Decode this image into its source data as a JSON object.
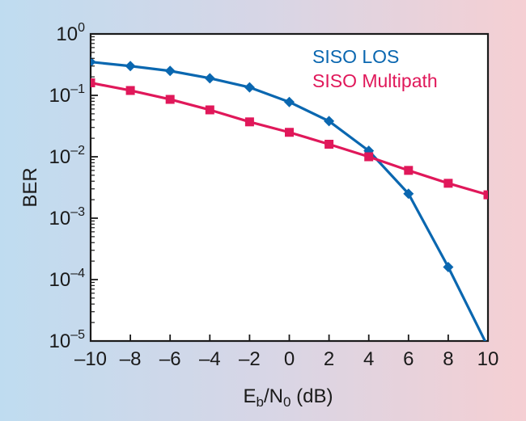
{
  "chart_data": {
    "type": "line",
    "title": "",
    "xlabel": {
      "main": "E",
      "sub1": "b",
      "mid": "/N",
      "sub2": "0",
      "tail": " (dB)"
    },
    "ylabel": "BER",
    "x": [
      -10,
      -8,
      -6,
      -4,
      -2,
      0,
      2,
      4,
      6,
      8,
      10
    ],
    "xlim": [
      -10,
      10
    ],
    "ylim": [
      1e-05,
      1
    ],
    "yscale": "log",
    "x_tick_labels": [
      "–10",
      "–8",
      "–6",
      "–4",
      "–2",
      "0",
      "2",
      "4",
      "6",
      "8",
      "10"
    ],
    "y_ticks": [
      {
        "value": 1,
        "base": "10",
        "exp": "0"
      },
      {
        "value": 0.1,
        "base": "10",
        "exp": "–1"
      },
      {
        "value": 0.01,
        "base": "10",
        "exp": "–2"
      },
      {
        "value": 0.001,
        "base": "10",
        "exp": "–3"
      },
      {
        "value": 0.0001,
        "base": "10",
        "exp": "–4"
      },
      {
        "value": 1e-05,
        "base": "10",
        "exp": "–5"
      }
    ],
    "grid": false,
    "legend_position": "top-right",
    "series": [
      {
        "name": "SISO LOS",
        "color": "#0a67b0",
        "marker": "diamond",
        "values": [
          0.35,
          0.3,
          0.25,
          0.19,
          0.135,
          0.078,
          0.038,
          0.0125,
          0.0025,
          0.00016,
          8e-06
        ]
      },
      {
        "name": "SISO Multipath",
        "color": "#e0185a",
        "marker": "square",
        "values": [
          0.16,
          0.12,
          0.086,
          0.058,
          0.037,
          0.025,
          0.016,
          0.01,
          0.006,
          0.0037,
          0.0024
        ]
      }
    ]
  }
}
